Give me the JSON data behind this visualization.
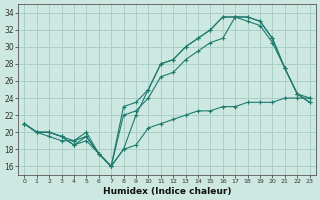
{
  "xlabel": "Humidex (Indice chaleur)",
  "bg_color": "#cce8e0",
  "grid_color": "#aacfc8",
  "line_color": "#1f7a6e",
  "xlim": [
    -0.5,
    23.5
  ],
  "ylim": [
    15,
    35
  ],
  "yticks": [
    16,
    18,
    20,
    22,
    24,
    26,
    28,
    30,
    32,
    34
  ],
  "xticks": [
    0,
    1,
    2,
    3,
    4,
    5,
    6,
    7,
    8,
    9,
    10,
    11,
    12,
    13,
    14,
    15,
    16,
    17,
    18,
    19,
    20,
    21,
    22,
    23
  ],
  "line1_x": [
    0,
    1,
    2,
    3,
    4,
    5,
    6,
    7,
    8,
    9,
    10,
    11,
    12,
    13,
    14,
    15,
    16,
    17,
    18,
    19,
    20,
    21,
    22,
    23
  ],
  "line1_y": [
    21,
    20,
    20,
    19.5,
    18.5,
    19,
    17.5,
    16,
    18,
    22,
    25,
    28,
    28.5,
    30,
    31,
    32,
    33.5,
    33.5,
    33.5,
    33,
    31,
    27.5,
    24.5,
    23.5
  ],
  "line2_x": [
    0,
    1,
    2,
    3,
    4,
    5,
    6,
    7,
    8,
    9,
    10,
    11,
    12,
    13,
    14,
    15,
    16,
    17,
    18,
    19,
    20,
    21,
    22,
    23
  ],
  "line2_y": [
    21,
    20,
    20,
    19.5,
    18.5,
    19.5,
    17.5,
    16,
    23,
    23.5,
    25,
    28,
    28.5,
    30,
    31,
    32,
    33.5,
    33.5,
    33.5,
    33,
    31,
    27.5,
    24.5,
    23.5
  ],
  "line3_x": [
    0,
    1,
    2,
    3,
    4,
    5,
    6,
    7,
    8,
    9,
    10,
    11,
    12,
    13,
    14,
    15,
    16,
    17,
    18,
    19,
    20,
    21,
    22,
    23
  ],
  "line3_y": [
    21,
    20,
    20,
    19.5,
    19,
    20,
    17.5,
    16,
    18,
    18.5,
    20.5,
    21,
    21.5,
    22,
    22.5,
    22.5,
    23,
    23,
    23.5,
    23.5,
    23.5,
    24,
    24,
    24
  ],
  "line4_x": [
    0,
    1,
    2,
    3,
    4,
    5,
    6,
    7,
    8,
    9,
    10,
    11,
    12,
    13,
    14,
    15,
    16,
    17,
    18,
    19,
    20,
    21,
    22,
    23
  ],
  "line4_y": [
    21,
    20,
    19.5,
    19,
    19,
    19.5,
    17.5,
    16,
    22,
    22.5,
    24,
    26.5,
    27,
    28.5,
    29.5,
    30.5,
    31,
    33.5,
    33,
    32.5,
    30.5,
    27.5,
    24.5,
    24
  ]
}
